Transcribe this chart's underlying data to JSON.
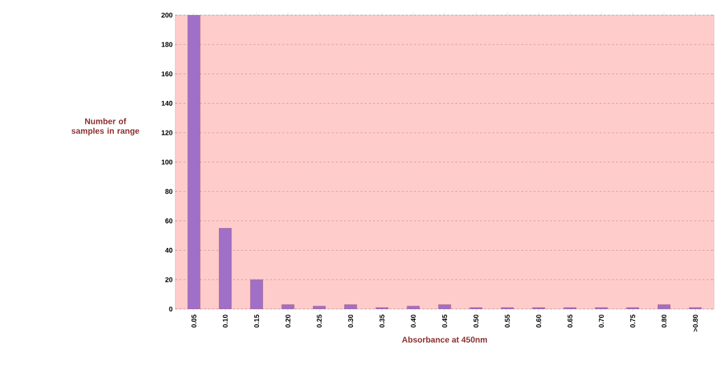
{
  "chart_data": {
    "type": "bar",
    "xlabel": "Absorbance at 450nm",
    "ylabel": "Number of samples in range",
    "categories": [
      "0.05",
      "0.10",
      "0.15",
      "0.20",
      "0.25",
      "0.30",
      "0.35",
      "0.40",
      "0.45",
      "0.50",
      "0.55",
      "0.60",
      "0.65",
      "0.70",
      "0.75",
      "0.80",
      ">0.80"
    ],
    "values": [
      200,
      55,
      20,
      3,
      2,
      3,
      1,
      2,
      3,
      1,
      1,
      1,
      1,
      1,
      1,
      3,
      1
    ],
    "color": "#a070c8",
    "ylim": [
      0,
      200
    ],
    "yticks": [
      0,
      20,
      40,
      60,
      80,
      100,
      120,
      140,
      160,
      180,
      200
    ],
    "grid": "y"
  }
}
